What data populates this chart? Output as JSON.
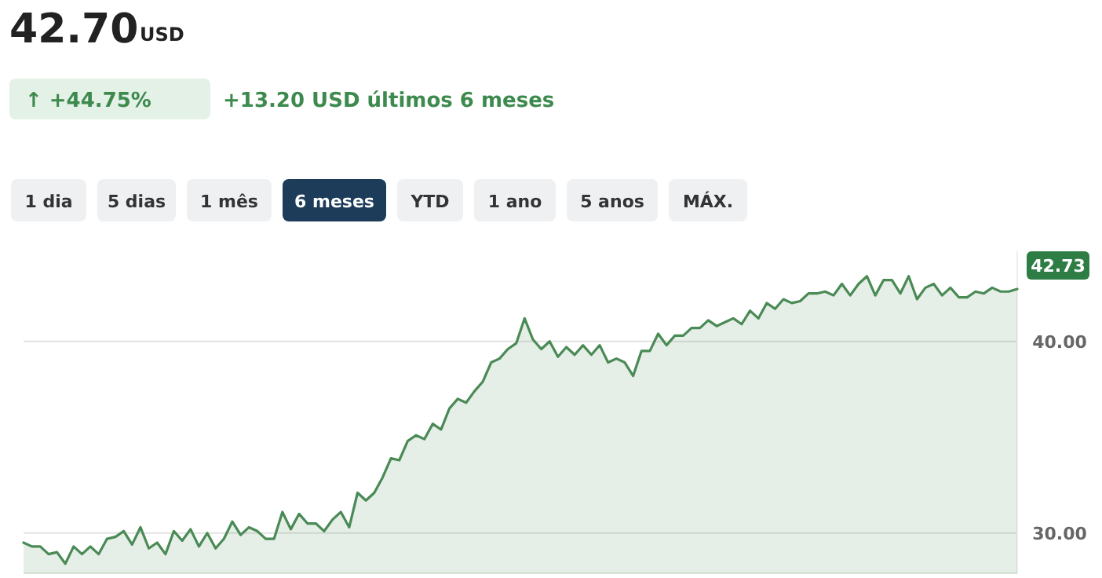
{
  "chart_data": {
    "type": "area",
    "title": "42.70",
    "annotations": [
      "USD",
      "↑ +44.75%",
      "+13.20 USD últimos 6 meses",
      "1 dia",
      "5 dias",
      "1 mês",
      "6 meses",
      "YTD",
      "1 ano",
      "5 anos",
      "MÁX."
    ],
    "categories": [
      null,
      null,
      null,
      null,
      null,
      null,
      null,
      null,
      null,
      null,
      null,
      null,
      null,
      null,
      null,
      null,
      null,
      null,
      null,
      null,
      null,
      null,
      null,
      null,
      null,
      null,
      null,
      null,
      null,
      null,
      null,
      null,
      null,
      null,
      null,
      null,
      null,
      null,
      null,
      null,
      null,
      null,
      null,
      null,
      null,
      null,
      null,
      null,
      null,
      null,
      null,
      null,
      null,
      null,
      null,
      null,
      null,
      null,
      null,
      null,
      null,
      null,
      null,
      null,
      null,
      null,
      null,
      null,
      null,
      null,
      null,
      null,
      null,
      null,
      null,
      null,
      null,
      null,
      null,
      null,
      null,
      null,
      null,
      null,
      null,
      null,
      null,
      null,
      null,
      null,
      null,
      null,
      null,
      null,
      null,
      null,
      null,
      null,
      null,
      null,
      null,
      null,
      null,
      null,
      null,
      null,
      null,
      null,
      null,
      null,
      null,
      null,
      null,
      null,
      null,
      null,
      null,
      null,
      null,
      null
    ],
    "series": [
      {
        "color": "#4a8a55",
        "values": [
          29.5,
          29.3,
          29.3,
          28.9,
          29.0,
          28.4,
          29.3,
          28.9,
          29.3,
          28.9,
          29.7,
          29.8,
          30.1,
          29.4,
          30.3,
          29.2,
          29.5,
          28.9,
          30.1,
          29.6,
          30.2,
          29.3,
          30.0,
          29.2,
          29.7,
          30.6,
          29.9,
          30.3,
          30.1,
          29.7,
          29.7,
          31.1,
          30.2,
          31.0,
          30.5,
          30.5,
          30.1,
          30.7,
          31.1,
          30.3,
          32.1,
          31.7,
          32.1,
          32.9,
          33.9,
          33.8,
          34.8,
          35.1,
          34.9,
          35.7,
          35.4,
          36.5,
          37.0,
          36.8,
          37.4,
          37.9,
          38.9,
          39.1,
          39.6,
          39.9,
          41.2,
          40.1,
          39.6,
          40.0,
          39.2,
          39.7,
          39.3,
          39.8,
          39.3,
          39.8,
          38.9,
          39.1,
          38.9,
          38.2,
          39.5,
          39.5,
          40.4,
          39.8,
          40.3,
          40.3,
          40.7,
          40.7,
          41.1,
          40.8,
          41.0,
          41.2,
          40.9,
          41.6,
          41.2,
          42.0,
          41.7,
          42.2,
          42.0,
          42.1,
          42.5,
          42.5,
          42.6,
          42.4,
          43.0,
          42.4,
          43.0,
          43.4,
          42.4,
          43.2,
          43.2,
          42.5,
          43.4,
          42.2,
          42.8,
          43.0,
          42.4,
          42.8,
          42.3,
          42.3,
          42.6,
          42.5,
          42.8,
          42.6,
          42.6,
          42.73
        ],
        "value_labels": [
          null,
          null,
          null,
          null,
          null,
          null,
          null,
          null,
          null,
          null,
          null,
          null,
          null,
          null,
          null,
          null,
          null,
          null,
          null,
          null,
          null,
          null,
          null,
          null,
          null,
          null,
          null,
          null,
          null,
          null,
          null,
          null,
          null,
          null,
          null,
          null,
          null,
          null,
          null,
          null,
          null,
          null,
          null,
          null,
          null,
          null,
          null,
          null,
          null,
          null,
          null,
          null,
          null,
          null,
          null,
          null,
          null,
          null,
          null,
          null,
          null,
          null,
          null,
          null,
          null,
          null,
          null,
          null,
          null,
          null,
          null,
          null,
          null,
          null,
          null,
          null,
          null,
          null,
          null,
          null,
          null,
          null,
          null,
          null,
          null,
          null,
          null,
          null,
          null,
          null,
          null,
          null,
          null,
          null,
          null,
          null,
          null,
          null,
          null,
          null,
          null,
          null,
          null,
          null,
          null,
          null,
          null,
          null,
          null,
          null,
          null,
          null,
          null,
          null,
          null,
          null,
          null,
          null,
          null,
          "42.73"
        ]
      }
    ],
    "ylim": [
      27.9,
      44.7
    ],
    "yticks": [
      {
        "value": 30,
        "label": "30.00"
      },
      {
        "value": 40,
        "label": "40.00"
      }
    ],
    "grid": "y",
    "tick_labels": "y",
    "line_style": "solid"
  }
}
